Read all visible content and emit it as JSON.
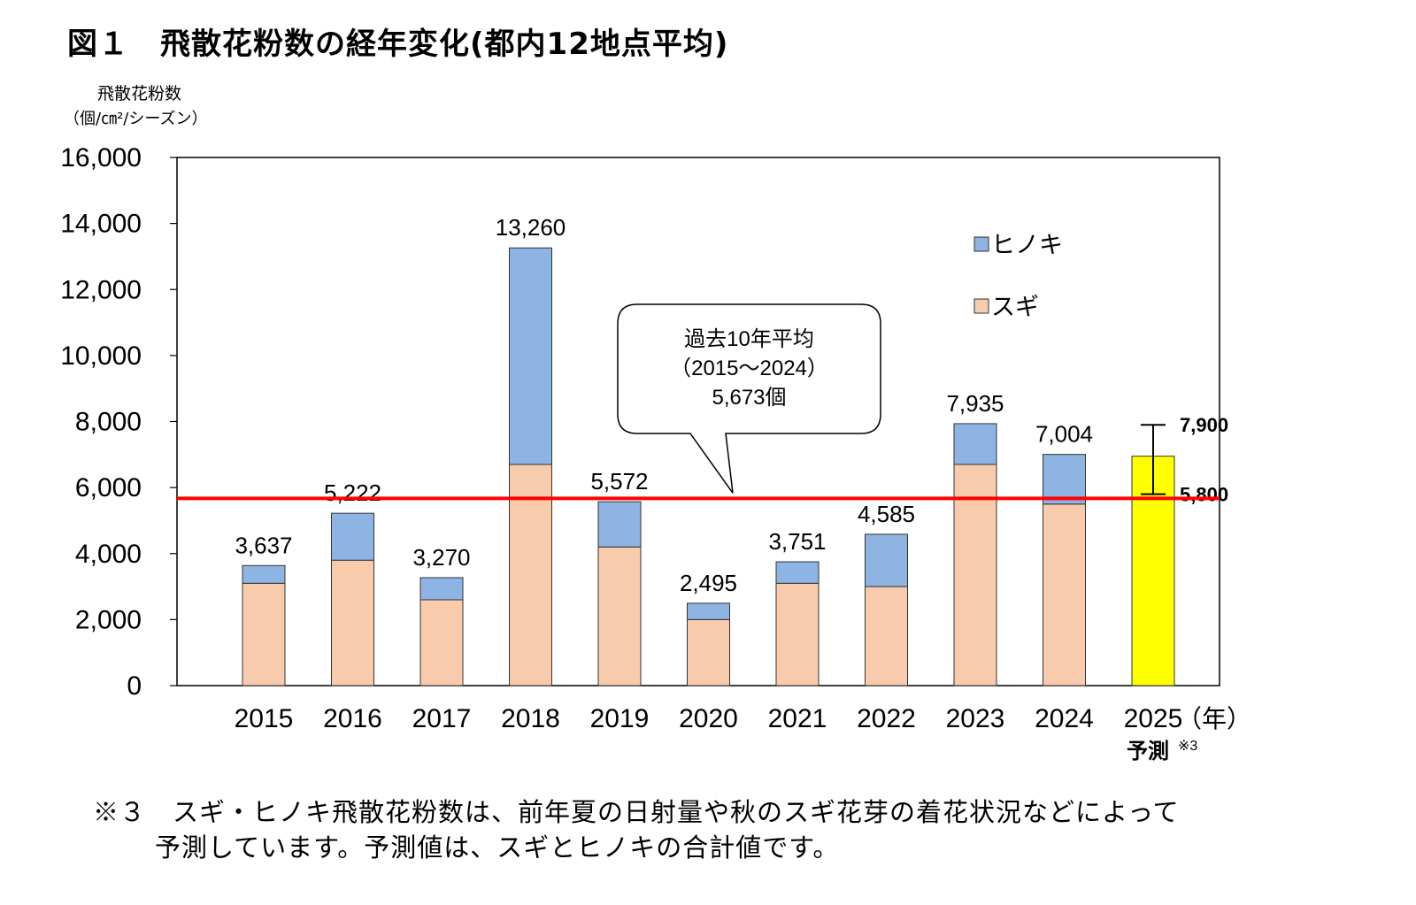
{
  "title": "図１　飛散花粉数の経年変化(都内12地点平均)",
  "ylabel_line1": "飛散花粉数",
  "ylabel_line2": "（個/㎝²/シーズン）",
  "chart_data": {
    "type": "bar",
    "stacked": true,
    "categories": [
      "2015",
      "2016",
      "2017",
      "2018",
      "2019",
      "2020",
      "2021",
      "2022",
      "2023",
      "2024",
      "2025"
    ],
    "x_unit": "（年）",
    "forecast_label": "予測",
    "forecast_note": "※3",
    "series": [
      {
        "name": "スギ",
        "color": "#f8cbad",
        "values": [
          3100,
          3800,
          2600,
          6700,
          4200,
          2000,
          3100,
          3000,
          6700,
          5500,
          null
        ]
      },
      {
        "name": "ヒノキ",
        "color": "#8db4e2",
        "values": [
          537,
          1422,
          670,
          6560,
          1372,
          495,
          651,
          1585,
          1235,
          1504,
          null
        ]
      }
    ],
    "totals": [
      3637,
      5222,
      3270,
      13260,
      5572,
      2495,
      3751,
      4585,
      7935,
      7004,
      null
    ],
    "total_labels": [
      "3,637",
      "5,222",
      "3,270",
      "13,260",
      "5,572",
      "2,495",
      "3,751",
      "4,585",
      "7,935",
      "7,004",
      ""
    ],
    "forecast": {
      "category": "2025",
      "value": 6950,
      "color": "#ffff00",
      "range": [
        5800,
        7900
      ],
      "range_labels": [
        "5,800",
        "7,900"
      ]
    },
    "average": {
      "value": 5673,
      "color": "#ff0000",
      "callout_lines": [
        "過去10年平均",
        "（2015～2024）",
        "5,673個"
      ]
    },
    "ylim": [
      0,
      16000
    ],
    "yticks": [
      0,
      2000,
      4000,
      6000,
      8000,
      10000,
      12000,
      14000,
      16000
    ],
    "ytick_labels": [
      "0",
      "2,000",
      "4,000",
      "6,000",
      "8,000",
      "10,000",
      "12,000",
      "14,000",
      "16,000"
    ],
    "legend": [
      "ヒノキ",
      "スギ"
    ],
    "legend_position": "top-right",
    "grid": false
  },
  "footnote_line1": "※３　スギ・ヒノキ飛散花粉数は、前年夏の日射量や秋のスギ花芽の着花状況などによって",
  "footnote_line2": "予測しています。予測値は、スギとヒノキの合計値です。"
}
